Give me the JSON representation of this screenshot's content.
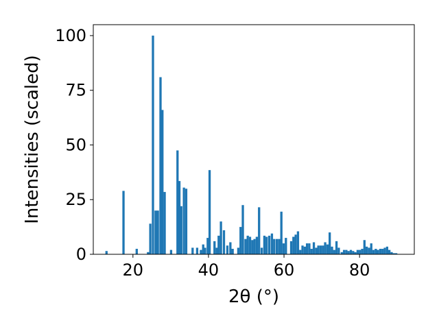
{
  "chart_data": {
    "type": "bar",
    "title": "",
    "xlabel": "2θ (°)",
    "ylabel": "Intensities (scaled)",
    "xlim": [
      9.5,
      94.5
    ],
    "ylim": [
      0,
      105
    ],
    "xticks": [
      20,
      40,
      60,
      80
    ],
    "yticks": [
      0,
      25,
      50,
      75,
      100
    ],
    "grid": false,
    "color": "#1f77b4",
    "bar_width": 0.6,
    "x": [
      13.0,
      17.5,
      21.0,
      24.0,
      24.6,
      25.3,
      26.0,
      26.6,
      27.3,
      27.8,
      28.4,
      30.1,
      31.8,
      32.3,
      32.8,
      33.5,
      34.1,
      35.8,
      37.0,
      38.0,
      38.6,
      39.1,
      39.8,
      40.3,
      41.6,
      42.2,
      42.7,
      43.3,
      44.1,
      45.0,
      45.8,
      46.4,
      47.9,
      48.5,
      49.1,
      49.8,
      50.4,
      51.0,
      51.6,
      52.2,
      52.8,
      53.4,
      54.1,
      54.8,
      55.4,
      56.1,
      56.8,
      57.4,
      58.1,
      58.7,
      59.3,
      59.9,
      60.5,
      61.9,
      62.5,
      63.1,
      63.7,
      64.3,
      64.9,
      65.5,
      66.1,
      66.7,
      67.3,
      67.9,
      68.5,
      69.1,
      69.7,
      70.3,
      70.9,
      71.5,
      72.1,
      72.7,
      73.3,
      73.9,
      74.5,
      75.3,
      75.9,
      76.5,
      77.1,
      77.7,
      78.3,
      78.9,
      79.5,
      80.1,
      80.7,
      81.3,
      81.9,
      82.5,
      83.1,
      83.7,
      84.3,
      84.9,
      85.5,
      86.1,
      86.7,
      87.3,
      87.9,
      88.5,
      89.1,
      89.7
    ],
    "values": [
      1.5,
      29,
      2.5,
      1,
      14,
      100,
      20,
      20,
      81,
      66,
      28.5,
      2,
      47.5,
      33.5,
      22,
      30.5,
      30,
      3,
      3,
      2,
      4.5,
      3,
      7.5,
      38.5,
      6,
      3,
      8.5,
      15,
      11,
      4,
      5.5,
      2.5,
      3,
      12.5,
      22.5,
      7,
      8.5,
      8,
      6.5,
      7,
      8,
      21.5,
      3,
      8.5,
      8,
      8.5,
      9.5,
      7,
      7,
      7,
      19.5,
      5,
      7.5,
      6,
      8,
      9,
      10.5,
      2,
      4,
      3.5,
      5,
      5,
      2.5,
      5.5,
      3,
      4,
      4,
      4,
      5.5,
      4.5,
      10,
      3.5,
      2,
      6,
      3,
      1,
      2,
      2,
      1.5,
      2,
      1.5,
      1,
      2,
      2,
      2.5,
      6.5,
      3.5,
      3,
      5,
      2,
      2.5,
      2,
      2.5,
      2.5,
      3,
      3.5,
      2,
      1,
      0.5,
      0.5
    ]
  }
}
